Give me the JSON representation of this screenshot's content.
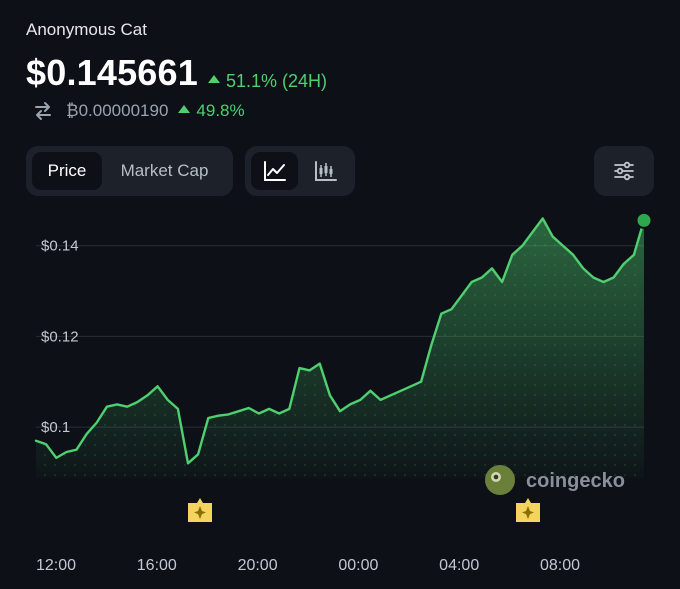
{
  "coin": {
    "name": "Anonymous Cat",
    "price": "$0.145661",
    "change_24h": "51.1% (24H)",
    "btc_price": "₿0.00000190",
    "btc_change": "49.8%"
  },
  "controls": {
    "metric_tabs": [
      "Price",
      "Market Cap"
    ],
    "selected_metric": "Price",
    "chart_types": [
      "line-chart-icon",
      "candlestick-icon"
    ],
    "selected_chart_type": "line-chart-icon",
    "settings_icon": "sliders-icon"
  },
  "watermark": "coingecko",
  "colors": {
    "background": "#0d1117",
    "panel": "#1d2129",
    "accent_green": "#4fcf6f",
    "marker_yellow": "#f4d35e"
  },
  "chart_data": {
    "type": "area",
    "title": "",
    "xlabel": "",
    "ylabel": "",
    "x_ticks": [
      "12:00",
      "16:00",
      "20:00",
      "00:00",
      "04:00",
      "08:00"
    ],
    "y_ticks": [
      "$0.1",
      "$0.12",
      "$0.14"
    ],
    "y_tick_values": [
      0.1,
      0.12,
      0.14
    ],
    "ylim": [
      0.087,
      0.147
    ],
    "x_hours": [
      0,
      0.4,
      0.8,
      1.2,
      1.6,
      2.0,
      2.4,
      2.8,
      3.2,
      3.6,
      4.0,
      4.4,
      4.8,
      5.2,
      5.6,
      6.0,
      6.4,
      6.8,
      7.2,
      7.6,
      8.0,
      8.4,
      8.8,
      9.2,
      9.6,
      10.0,
      10.4,
      10.8,
      11.2,
      11.6,
      12.0,
      12.4,
      12.8,
      13.2,
      13.6,
      14.0,
      14.4,
      14.8,
      15.2,
      15.6,
      16.0,
      16.4,
      16.8,
      17.2,
      17.6,
      18.0,
      18.4,
      18.8,
      19.2,
      19.6,
      20.0,
      20.4,
      20.8,
      21.2,
      21.6,
      22.0,
      22.4,
      22.8,
      23.2,
      23.6,
      24.0
    ],
    "series": [
      {
        "values": [
          0.097,
          0.0962,
          0.0932,
          0.0945,
          0.095,
          0.0985,
          0.101,
          0.1045,
          0.105,
          0.1045,
          0.1055,
          0.107,
          0.109,
          0.106,
          0.104,
          0.092,
          0.094,
          0.102,
          0.1025,
          0.1028,
          0.1035,
          0.1042,
          0.103,
          0.104,
          0.103,
          0.104,
          0.113,
          0.1125,
          0.114,
          0.107,
          0.1035,
          0.105,
          0.106,
          0.108,
          0.106,
          0.107,
          0.108,
          0.109,
          0.11,
          0.118,
          0.125,
          0.126,
          0.129,
          0.132,
          0.133,
          0.135,
          0.132,
          0.138,
          0.14,
          0.143,
          0.146,
          0.142,
          0.14,
          0.138,
          0.135,
          0.133,
          0.132,
          0.133,
          0.136,
          0.138,
          0.1456
        ]
      }
    ],
    "event_markers_x": [
      "~18:00",
      "~07:00"
    ],
    "grid": true,
    "legend": "none"
  }
}
